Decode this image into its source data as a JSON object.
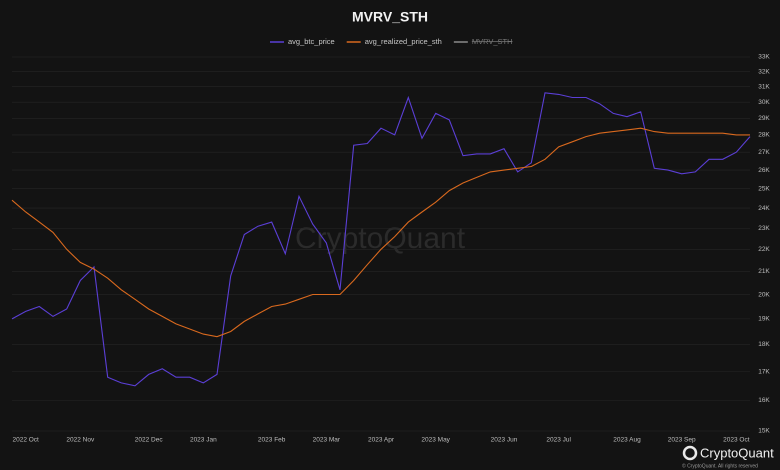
{
  "chart_data": {
    "type": "line",
    "title": "MVRV_STH",
    "categories": [
      null,
      "2022 Oct",
      null,
      null,
      null,
      "2022 Nov",
      null,
      null,
      null,
      null,
      "2022 Dec",
      null,
      null,
      null,
      "2023 Jan",
      null,
      null,
      null,
      null,
      "2023 Feb",
      null,
      null,
      null,
      "2023 Mar",
      null,
      null,
      null,
      "2023 Apr",
      null,
      null,
      null,
      "2023 May",
      null,
      null,
      null,
      null,
      "2023 Jun",
      null,
      null,
      null,
      "2023 Jul",
      null,
      null,
      null,
      null,
      "2023 Aug",
      null,
      null,
      null,
      "2023 Sep",
      null,
      null,
      null,
      "2023 Oct",
      null
    ],
    "series": [
      {
        "name": "avg_btc_price",
        "color": "#5b3fd6",
        "values": [
          19000,
          19300,
          19500,
          19100,
          19400,
          20600,
          21200,
          16800,
          16600,
          16500,
          16900,
          17100,
          16800,
          16800,
          16600,
          16900,
          20800,
          22700,
          23100,
          23300,
          21800,
          24600,
          23200,
          22300,
          20200,
          27400,
          27500,
          28400,
          28000,
          30300,
          27800,
          29300,
          28900,
          26800,
          26900,
          26900,
          27200,
          25900,
          26400,
          30600,
          30500,
          30300,
          30300,
          29900,
          29300,
          29100,
          29400,
          26100,
          26000,
          25800,
          25900,
          26600,
          26600,
          27000,
          27900
        ]
      },
      {
        "name": "avg_realized_price_sth",
        "color": "#d9691e",
        "values": [
          24400,
          23800,
          23300,
          22800,
          22000,
          21400,
          21100,
          20700,
          20200,
          19800,
          19400,
          19100,
          18800,
          18600,
          18400,
          18300,
          18500,
          18900,
          19200,
          19500,
          19600,
          19800,
          20000,
          20000,
          20000,
          20600,
          21300,
          22000,
          22600,
          23300,
          23800,
          24300,
          24900,
          25300,
          25600,
          25900,
          26000,
          26100,
          26200,
          26600,
          27300,
          27600,
          27900,
          28100,
          28200,
          28300,
          28400,
          28200,
          28100,
          28100,
          28100,
          28100,
          28100,
          28000,
          28000
        ]
      },
      {
        "name": "MVRV_STH",
        "color": "#8a8a8a",
        "visible": false
      }
    ],
    "ylim": [
      15000,
      33000
    ],
    "ylog": true,
    "grid": true,
    "yticks": [
      {
        "value": 15000,
        "label": "15K"
      },
      {
        "value": 16000,
        "label": "16K"
      },
      {
        "value": 17000,
        "label": "17K"
      },
      {
        "value": 18000,
        "label": "18K"
      },
      {
        "value": 19000,
        "label": "19K"
      },
      {
        "value": 20000,
        "label": "20K"
      },
      {
        "value": 21000,
        "label": "21K"
      },
      {
        "value": 22000,
        "label": "22K"
      },
      {
        "value": 23000,
        "label": "23K"
      },
      {
        "value": 24000,
        "label": "24K"
      },
      {
        "value": 25000,
        "label": "25K"
      },
      {
        "value": 26000,
        "label": "26K"
      },
      {
        "value": 27000,
        "label": "27K"
      },
      {
        "value": 28000,
        "label": "28K"
      },
      {
        "value": 29000,
        "label": "29K"
      },
      {
        "value": 30000,
        "label": "30K"
      },
      {
        "value": 31000,
        "label": "31K"
      },
      {
        "value": 32000,
        "label": "32K"
      },
      {
        "value": 33000,
        "label": "33K"
      }
    ],
    "watermark": "CryptoQuant",
    "brand": "CryptoQuant",
    "copyright": "© CryptoQuant. All rights reserved"
  }
}
